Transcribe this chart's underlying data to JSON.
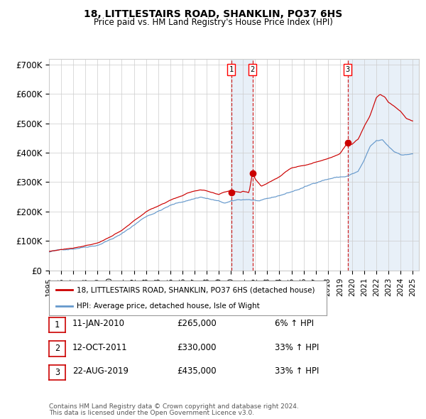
{
  "title": "18, LITTLESTAIRS ROAD, SHANKLIN, PO37 6HS",
  "subtitle": "Price paid vs. HM Land Registry's House Price Index (HPI)",
  "legend_line1": "18, LITTLESTAIRS ROAD, SHANKLIN, PO37 6HS (detached house)",
  "legend_line2": "HPI: Average price, detached house, Isle of Wight",
  "footer_line1": "Contains HM Land Registry data © Crown copyright and database right 2024.",
  "footer_line2": "This data is licensed under the Open Government Licence v3.0.",
  "transactions": [
    {
      "num": 1,
      "date": "11-JAN-2010",
      "price": "265,000",
      "pct": "6% ↑ HPI"
    },
    {
      "num": 2,
      "date": "12-OCT-2011",
      "price": "330,000",
      "pct": "33% ↑ HPI"
    },
    {
      "num": 3,
      "date": "22-AUG-2019",
      "price": "435,000",
      "pct": "33% ↑ HPI"
    }
  ],
  "transaction_dates_decimal": [
    2010.03,
    2011.79,
    2019.64
  ],
  "transaction_prices": [
    265000,
    330000,
    435000
  ],
  "red_line_color": "#cc0000",
  "blue_line_color": "#6699cc",
  "background_color": "#ffffff",
  "grid_color": "#cccccc",
  "highlight_color": "#ddeeff",
  "vline_color": "#cc0000",
  "xlim": [
    1995.0,
    2025.5
  ],
  "ylim": [
    0,
    720000
  ],
  "yticks": [
    0,
    100000,
    200000,
    300000,
    400000,
    500000,
    600000,
    700000
  ],
  "ytick_labels": [
    "£0",
    "£100K",
    "£200K",
    "£300K",
    "£400K",
    "£500K",
    "£600K",
    "£700K"
  ]
}
